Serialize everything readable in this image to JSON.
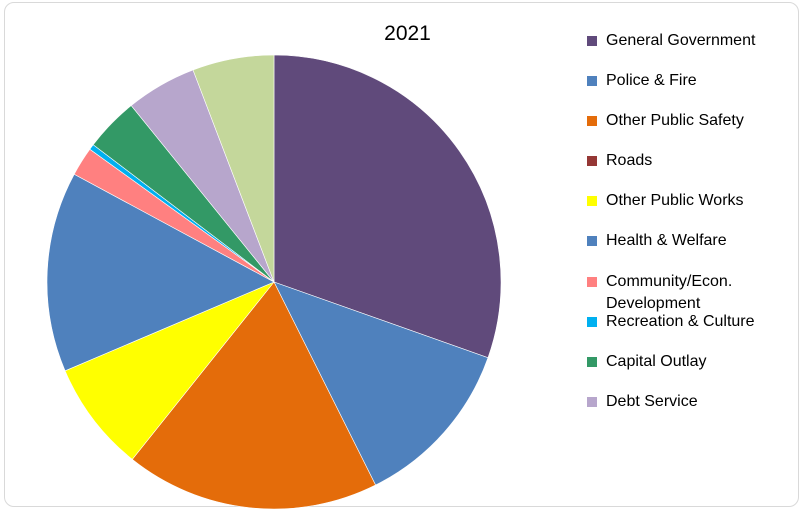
{
  "chart_data": {
    "type": "pie",
    "title": "2021",
    "legend_position": "right",
    "start_angle_deg": 0,
    "direction": "clockwise",
    "slices": [
      {
        "label": "General Government",
        "value": 30.9,
        "color": "#604a7b"
      },
      {
        "label": "Police & Fire",
        "value": 12.4,
        "color": "#4f81bd"
      },
      {
        "label": "Other Public Safety",
        "value": 18.4,
        "color": "#e46c0a"
      },
      {
        "label": "Roads",
        "value": 0.0,
        "color": "#953735"
      },
      {
        "label": "Other Public Works",
        "value": 8.0,
        "color": "#ffff00"
      },
      {
        "label": "Health & Welfare",
        "value": 14.5,
        "color": "#4f81bd"
      },
      {
        "label": "Community/Econ. Development",
        "value": 2.1,
        "color": "#ff8080"
      },
      {
        "label": "Recreation & Culture",
        "value": 0.4,
        "color": "#00b0f0"
      },
      {
        "label": "Capital Outlay",
        "value": 3.9,
        "color": "#339966"
      },
      {
        "label": "Debt Service",
        "value": 5.1,
        "color": "#b7a6cc"
      },
      {
        "label": "",
        "value": 5.9,
        "color": "#c4d79b"
      }
    ]
  }
}
